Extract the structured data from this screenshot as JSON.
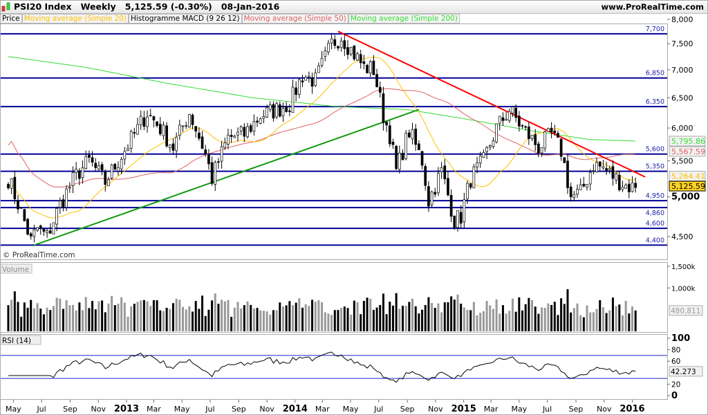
{
  "header": {
    "title": "PSI20 Index   Weekly   5,125.59 (-0.30%)   08-Jan-2016",
    "site": "www.ProRealTime.com",
    "copyright": "© ProRealTime.com"
  },
  "legend": [
    {
      "label": "Price",
      "color": "#000000"
    },
    {
      "label": "Moving average (Simple 20)",
      "color": "#ffc000"
    },
    {
      "label": "Histogramme MACD (9 26 12)",
      "color": "#000000"
    },
    {
      "label": "Moving average (Simple 50)",
      "color": "#e06060"
    },
    {
      "label": "Moving average (Simple 200)",
      "color": "#33dd33"
    }
  ],
  "chart_data": [
    {
      "type": "candlestick",
      "panel": "Price",
      "scale": "log",
      "ylim": [
        4350,
        8050
      ],
      "yticks": [
        {
          "v": 8000,
          "label": "8,000"
        },
        {
          "v": 7500,
          "label": "7,500"
        },
        {
          "v": 7000,
          "label": "7,000"
        },
        {
          "v": 6500,
          "label": "6,500"
        },
        {
          "v": 6000,
          "label": "6,000"
        },
        {
          "v": 5500,
          "label": "5,500"
        },
        {
          "v": 5000,
          "label": "5,000"
        },
        {
          "v": 4500,
          "label": "4,500"
        }
      ],
      "levels": [
        {
          "v": 7700,
          "label": "7,700"
        },
        {
          "v": 6850,
          "label": "6,850"
        },
        {
          "v": 6350,
          "label": "6,350"
        },
        {
          "v": 5600,
          "label": "5,600"
        },
        {
          "v": 5350,
          "label": "5,350"
        },
        {
          "v": 4950,
          "label": "4,950"
        },
        {
          "v": 4860,
          "label": "4,860"
        },
        {
          "v": 4600,
          "label": "4,600"
        },
        {
          "v": 4400,
          "label": "4,400"
        }
      ],
      "close_series": [
        [
          "2012-04-20",
          5250
        ],
        [
          "2012-05-18",
          4800
        ],
        [
          "2012-06-08",
          4450
        ],
        [
          "2012-06-22",
          4600
        ],
        [
          "2012-07-13",
          4500
        ],
        [
          "2012-08-10",
          4900
        ],
        [
          "2012-09-14",
          5300
        ],
        [
          "2012-10-12",
          5500
        ],
        [
          "2012-11-16",
          5200
        ],
        [
          "2012-12-14",
          5500
        ],
        [
          "2013-01-18",
          5900
        ],
        [
          "2013-02-15",
          6250
        ],
        [
          "2013-03-15",
          6000
        ],
        [
          "2013-04-12",
          5700
        ],
        [
          "2013-05-17",
          6250
        ],
        [
          "2013-06-21",
          5600
        ],
        [
          "2013-07-05",
          5250
        ],
        [
          "2013-08-09",
          5850
        ],
        [
          "2013-09-13",
          5900
        ],
        [
          "2013-10-18",
          6200
        ],
        [
          "2013-11-22",
          6300
        ],
        [
          "2013-12-20",
          6400
        ],
        [
          "2014-01-17",
          6900
        ],
        [
          "2014-02-14",
          6800
        ],
        [
          "2014-03-21",
          7500
        ],
        [
          "2014-04-11",
          7650
        ],
        [
          "2014-05-09",
          7300
        ],
        [
          "2014-05-30",
          7050
        ],
        [
          "2014-06-20",
          7000
        ],
        [
          "2014-07-11",
          6200
        ],
        [
          "2014-07-25",
          5900
        ],
        [
          "2014-08-08",
          5350
        ],
        [
          "2014-09-05",
          5950
        ],
        [
          "2014-10-03",
          5500
        ],
        [
          "2014-10-17",
          4950
        ],
        [
          "2014-11-14",
          5350
        ],
        [
          "2014-12-12",
          4700
        ],
        [
          "2014-12-26",
          4750
        ],
        [
          "2015-01-16",
          5250
        ],
        [
          "2015-02-13",
          5500
        ],
        [
          "2015-03-13",
          6000
        ],
        [
          "2015-04-10",
          6300
        ],
        [
          "2015-05-08",
          6000
        ],
        [
          "2015-06-12",
          5700
        ],
        [
          "2015-07-10",
          5900
        ],
        [
          "2015-07-31",
          5650
        ],
        [
          "2015-08-21",
          5000
        ],
        [
          "2015-09-11",
          5050
        ],
        [
          "2015-10-09",
          5450
        ],
        [
          "2015-10-30",
          5400
        ],
        [
          "2015-11-27",
          5250
        ],
        [
          "2015-12-18",
          5150
        ],
        [
          "2016-01-08",
          5125.59
        ]
      ],
      "sma200_series": [
        [
          "2012-04-20",
          7250
        ],
        [
          "2012-10-01",
          7050
        ],
        [
          "2013-04-01",
          6750
        ],
        [
          "2013-10-01",
          6500
        ],
        [
          "2014-04-01",
          6350
        ],
        [
          "2014-09-01",
          6300
        ],
        [
          "2015-01-01",
          6150
        ],
        [
          "2015-06-01",
          5950
        ],
        [
          "2015-10-01",
          5820
        ],
        [
          "2016-01-08",
          5795.86
        ]
      ],
      "trendlines": [
        {
          "color": "#ff0000",
          "from": [
            "2014-04-04",
            7750
          ],
          "to": [
            "2016-01-29",
            5270
          ]
        },
        {
          "color": "#119911",
          "from": [
            "2012-06-15",
            4400
          ],
          "to": [
            "2014-09-26",
            6300
          ]
        }
      ],
      "last_values": [
        {
          "label": "5,795.86",
          "color": "#33dd33"
        },
        {
          "label": "5,567.59",
          "color": "#e06060"
        },
        {
          "label": "5,264.41",
          "color": "#ffc000"
        },
        {
          "label": "5,125.59",
          "color": "#000000"
        }
      ]
    },
    {
      "type": "bar",
      "panel": "Volume",
      "ylim": [
        0,
        1500000
      ],
      "yticks": [
        {
          "v": 1500000,
          "label": "1,500k"
        },
        {
          "v": 1000000,
          "label": "1,000k"
        }
      ],
      "last_value": "480,811"
    },
    {
      "type": "line",
      "panel": "RSI (14)",
      "ylim": [
        0,
        100
      ],
      "levels": [
        70,
        30
      ],
      "yticks": [
        {
          "v": 100,
          "label": "100"
        },
        {
          "v": 80,
          "label": "80"
        },
        {
          "v": 60,
          "label": "60"
        },
        {
          "v": 20,
          "label": "20"
        },
        {
          "v": 0,
          "label": "0"
        }
      ],
      "last_value": "42.273"
    }
  ],
  "xaxis": [
    {
      "d": "2012-05-01",
      "label": "May"
    },
    {
      "d": "2012-07-01",
      "label": "Jul"
    },
    {
      "d": "2012-09-01",
      "label": "Sep"
    },
    {
      "d": "2012-11-01",
      "label": "Nov"
    },
    {
      "d": "2013-01-01",
      "label": "2013",
      "bold": true
    },
    {
      "d": "2013-03-01",
      "label": "Mar"
    },
    {
      "d": "2013-05-01",
      "label": "May"
    },
    {
      "d": "2013-07-01",
      "label": "Jul"
    },
    {
      "d": "2013-09-01",
      "label": "Sep"
    },
    {
      "d": "2013-11-01",
      "label": "Nov"
    },
    {
      "d": "2014-01-01",
      "label": "2014",
      "bold": true
    },
    {
      "d": "2014-03-01",
      "label": "Mar"
    },
    {
      "d": "2014-05-01",
      "label": "May"
    },
    {
      "d": "2014-07-01",
      "label": "Jul"
    },
    {
      "d": "2014-09-01",
      "label": "Sep"
    },
    {
      "d": "2014-11-01",
      "label": "Nov"
    },
    {
      "d": "2015-01-01",
      "label": "2015",
      "bold": true
    },
    {
      "d": "2015-03-01",
      "label": "Mar"
    },
    {
      "d": "2015-05-01",
      "label": "May"
    },
    {
      "d": "2015-07-01",
      "label": "Jul"
    },
    {
      "d": "2015-09-01",
      "label": "Sep"
    },
    {
      "d": "2015-11-01",
      "label": "Nov"
    },
    {
      "d": "2016-01-01",
      "label": "2016",
      "bold": true
    }
  ]
}
